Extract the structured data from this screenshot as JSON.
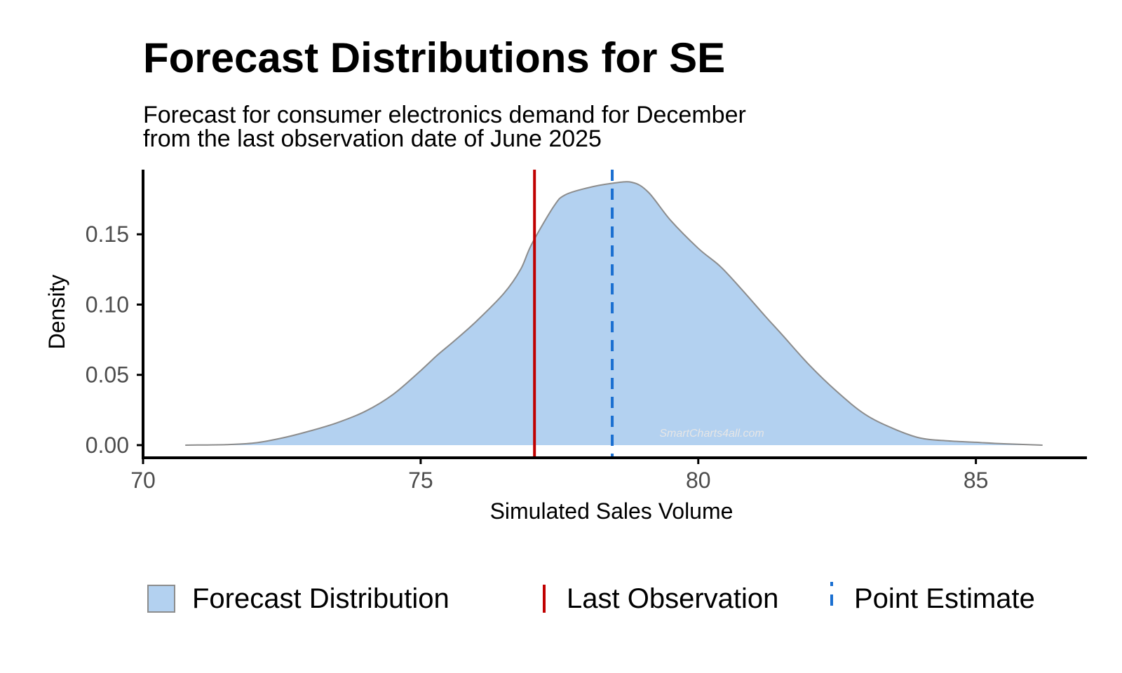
{
  "title": "Forecast Distributions for SE",
  "subtitle_lines": [
    "Forecast for consumer electronics demand for December",
    "from the last observation date of June 2025"
  ],
  "watermark": "SmartCharts4all.com",
  "colors": {
    "fill": "#b3d1f0",
    "outline": "#8c8c8c",
    "last_observation": "#c00000",
    "point_estimate": "#1a6fd1",
    "axis": "#000000"
  },
  "chart_data": {
    "type": "area",
    "title": "Forecast Distributions for SE",
    "xlabel": "Simulated Sales Volume",
    "ylabel": "Density",
    "xlim": [
      70,
      87
    ],
    "ylim": [
      -0.009,
      0.196
    ],
    "x_ticks": [
      70,
      75,
      80,
      85
    ],
    "x_tick_labels": [
      "70",
      "75",
      "80",
      "85"
    ],
    "y_ticks": [
      0.0,
      0.05,
      0.1,
      0.15
    ],
    "y_tick_labels": [
      "0.00",
      "0.05",
      "0.10",
      "0.15"
    ],
    "grid": false,
    "legend_position": "bottom",
    "series": [
      {
        "name": "Forecast Distribution",
        "x": [
          70.76,
          71.5,
          72.0,
          72.5,
          73.0,
          73.5,
          74.0,
          74.5,
          75.0,
          75.3,
          75.6,
          76.0,
          76.5,
          76.8,
          77.0,
          77.4,
          77.6,
          78.0,
          78.4,
          78.8,
          79.1,
          79.5,
          80.0,
          80.4,
          80.8,
          81.2,
          81.5,
          82.0,
          82.5,
          83.0,
          83.5,
          84.0,
          84.5,
          85.0,
          85.5,
          86.2
        ],
        "y": [
          0.0,
          0.0004,
          0.0015,
          0.005,
          0.01,
          0.016,
          0.024,
          0.036,
          0.053,
          0.064,
          0.074,
          0.088,
          0.108,
          0.125,
          0.143,
          0.17,
          0.178,
          0.183,
          0.186,
          0.187,
          0.18,
          0.16,
          0.14,
          0.127,
          0.11,
          0.092,
          0.079,
          0.057,
          0.038,
          0.022,
          0.012,
          0.005,
          0.003,
          0.002,
          0.001,
          0.0
        ]
      }
    ],
    "vlines": [
      {
        "name": "Last Observation",
        "x": 77.05,
        "style": "solid"
      },
      {
        "name": "Point Estimate",
        "x": 78.45,
        "style": "dashed"
      }
    ]
  },
  "legend": {
    "items": [
      {
        "label": "Forecast Distribution",
        "key": "fill"
      },
      {
        "label": "Last Observation",
        "key": "solid-line"
      },
      {
        "label": "Point Estimate",
        "key": "dashed-line"
      }
    ]
  }
}
